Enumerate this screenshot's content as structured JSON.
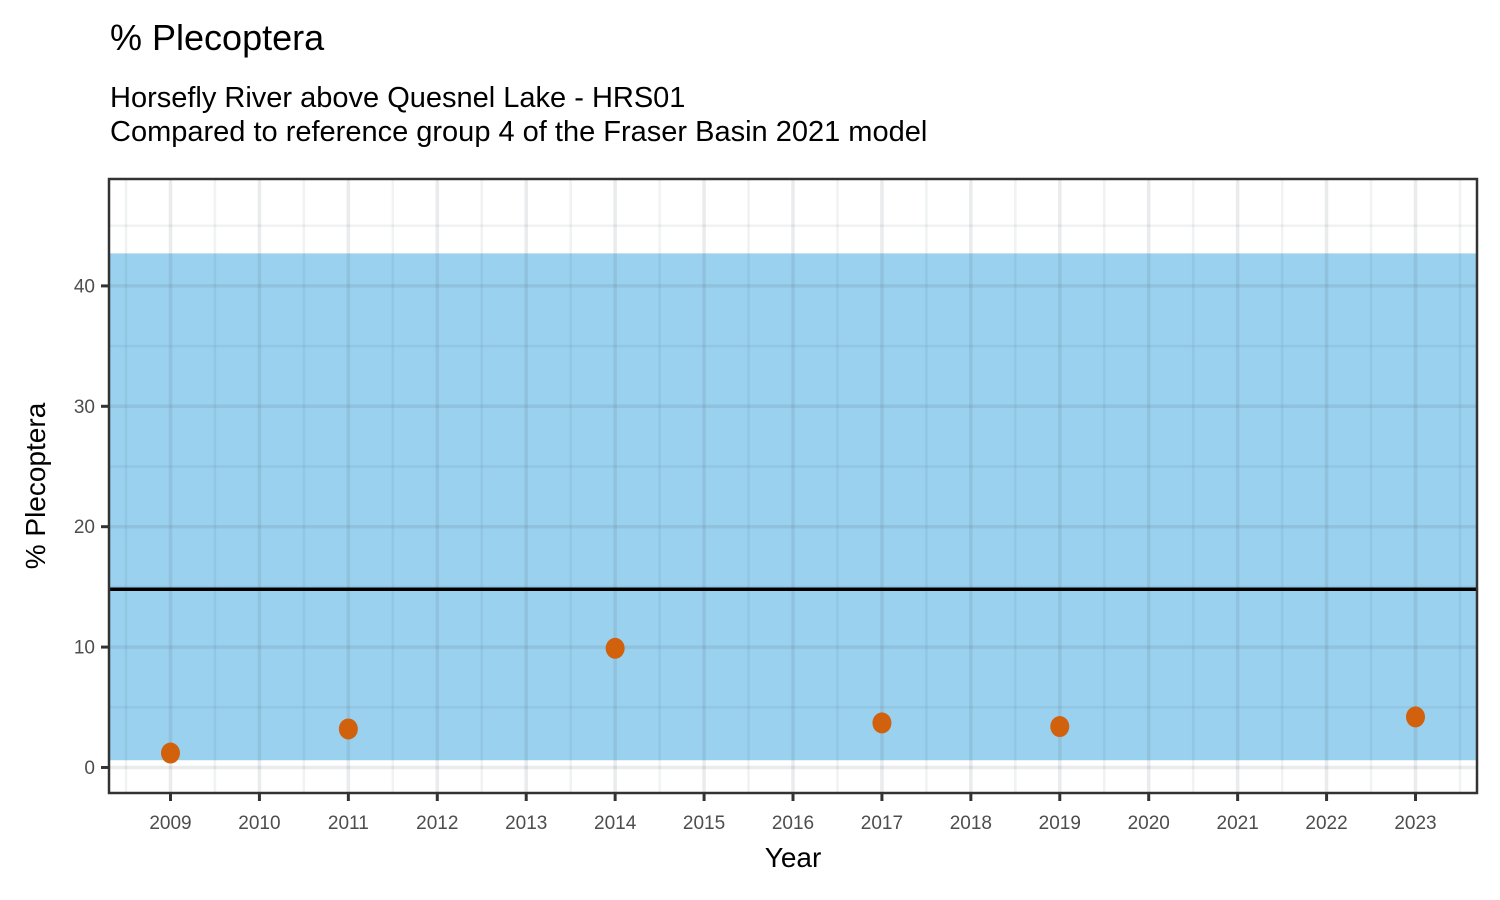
{
  "chart_data": {
    "type": "scatter",
    "title": "% Plecoptera",
    "subtitle": [
      "Horsefly River above Quesnel Lake - HRS01",
      "Compared to reference group 4 of the Fraser Basin 2021 model"
    ],
    "xlabel": "Year",
    "ylabel": "% Plecoptera",
    "x_categories": [
      "2009",
      "2010",
      "2011",
      "2012",
      "2013",
      "2014",
      "2015",
      "2016",
      "2017",
      "2018",
      "2019",
      "2020",
      "2021",
      "2022",
      "2023"
    ],
    "series": [
      {
        "name": "% Plecoptera",
        "points": [
          {
            "x": "2009",
            "y": 1.2
          },
          {
            "x": "2011",
            "y": 3.2
          },
          {
            "x": "2014",
            "y": 9.9
          },
          {
            "x": "2017",
            "y": 3.7
          },
          {
            "x": "2019",
            "y": 3.4
          },
          {
            "x": "2023",
            "y": 4.2
          }
        ]
      }
    ],
    "reference_band": {
      "lower": 0.6,
      "upper": 42.7
    },
    "reference_line": 14.8,
    "y_ticks": [
      0,
      10,
      20,
      30,
      40
    ],
    "y_minor_ticks": [
      5,
      15,
      25,
      35,
      45
    ],
    "ylim": [
      -2.12,
      48.88
    ],
    "grid": true,
    "legend": "none",
    "colors": {
      "band": "#9AD1EE",
      "point": "#D2610E",
      "reference_line": "#000000",
      "panel_border": "#333333",
      "tick_mark": "#333333",
      "tick_label": "#4D4D4D",
      "grid_major": "rgba(70,90,105,0.12)",
      "grid_minor": "rgba(70,90,105,0.08)",
      "panel_background": "#FFFFFF"
    }
  }
}
